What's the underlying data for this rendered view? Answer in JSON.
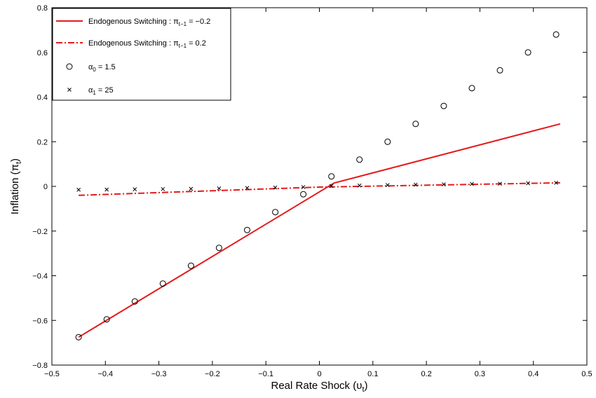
{
  "chart_data": {
    "type": "line",
    "title": "",
    "xlabel": "Real Rate Shock (υ",
    "xlabel_sub": "t",
    "xlabel_close": ")",
    "ylabel": "Inflation (π",
    "ylabel_sub": "t",
    "ylabel_close": ")",
    "xlim": [
      -0.5,
      0.5
    ],
    "ylim": [
      -0.8,
      0.8
    ],
    "xticks": [
      -0.5,
      -0.4,
      -0.3,
      -0.2,
      -0.1,
      0,
      0.1,
      0.2,
      0.3,
      0.4,
      0.5
    ],
    "xtick_labels": [
      "−0.5",
      "−0.4",
      "−0.3",
      "−0.2",
      "−0.1",
      "0",
      "0.1",
      "0.2",
      "0.3",
      "0.4",
      "0.5"
    ],
    "yticks": [
      -0.8,
      -0.6,
      -0.4,
      -0.2,
      0,
      0.2,
      0.4,
      0.6,
      0.8
    ],
    "ytick_labels": [
      "−0.8",
      "−0.6",
      "−0.4",
      "−0.2",
      "0",
      "0.2",
      "0.4",
      "0.6",
      "0.8"
    ],
    "grid": false,
    "legend_position": "top-left",
    "series": [
      {
        "name": "Endogenous Switching : π_{t−1} = −0.2",
        "legend_main": "Endogenous Switching : π",
        "legend_sub": "t−1",
        "legend_tail": " = −0.2",
        "style": "solid-line",
        "color": "#e41a1c",
        "x": [
          -0.45,
          0.0275,
          0.45
        ],
        "y": [
          -0.675,
          0.015,
          0.28
        ]
      },
      {
        "name": "Endogenous Switching : π_{t−1} = 0.2",
        "legend_main": "Endogenous Switching : π",
        "legend_sub": "t−1",
        "legend_tail": " = 0.2",
        "style": "dash-dot-line",
        "color": "#e41a1c",
        "x": [
          -0.45,
          0.0,
          0.45
        ],
        "y": [
          -0.04,
          -0.003,
          0.016
        ]
      },
      {
        "name": "α_0 = 1.5",
        "legend_main": "α",
        "legend_sub": "0",
        "legend_tail": " = 1.5",
        "style": "circle-marker",
        "color": "#000000",
        "x": [
          -0.45,
          -0.3975,
          -0.345,
          -0.2925,
          -0.24,
          -0.1875,
          -0.135,
          -0.0825,
          -0.03,
          0.0225,
          0.075,
          0.1275,
          0.18,
          0.2325,
          0.285,
          0.3375,
          0.39,
          0.4425
        ],
        "y": [
          -0.675,
          -0.595,
          -0.515,
          -0.435,
          -0.355,
          -0.275,
          -0.195,
          -0.115,
          -0.035,
          0.045,
          0.12,
          0.2,
          0.28,
          0.36,
          0.44,
          0.52,
          0.6,
          0.68
        ]
      },
      {
        "name": "α_1 = 25",
        "legend_main": "α",
        "legend_sub": "1",
        "legend_tail": " = 25",
        "style": "x-marker",
        "color": "#000000",
        "x": [
          -0.45,
          -0.3975,
          -0.345,
          -0.2925,
          -0.24,
          -0.1875,
          -0.135,
          -0.0825,
          -0.03,
          0.0225,
          0.075,
          0.1275,
          0.18,
          0.2325,
          0.285,
          0.3375,
          0.39,
          0.4425
        ],
        "y": [
          -0.015,
          -0.014,
          -0.013,
          -0.012,
          -0.011,
          -0.009,
          -0.007,
          -0.005,
          -0.003,
          0.002,
          0.004,
          0.006,
          0.008,
          0.009,
          0.011,
          0.012,
          0.014,
          0.016
        ]
      }
    ]
  }
}
